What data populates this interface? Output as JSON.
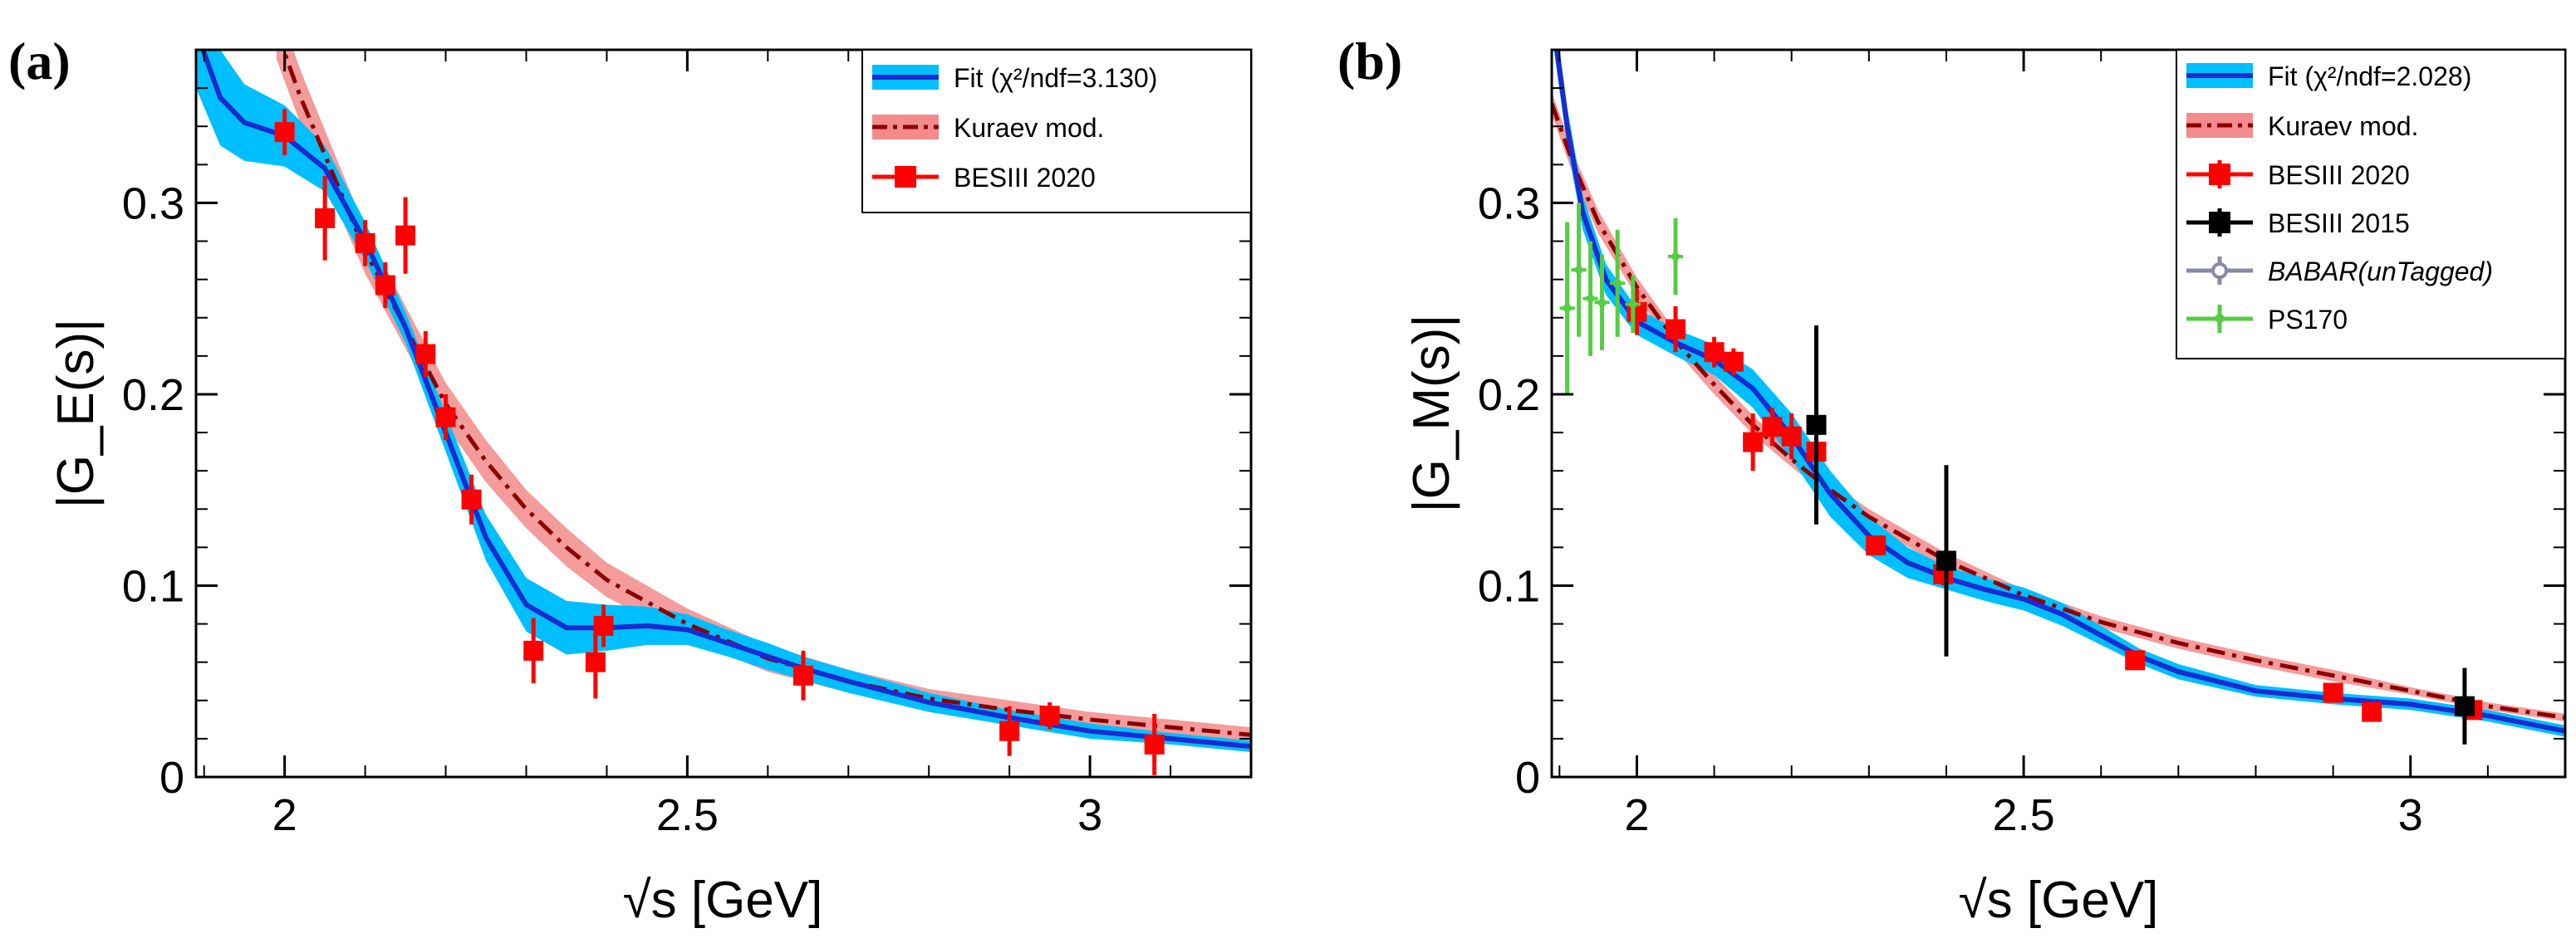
{
  "chart_data": [
    {
      "type": "scatter",
      "panel_label": "(a)",
      "xlabel": "√s [GeV]",
      "ylabel": "|G_E(s)|",
      "xlim": [
        1.89,
        3.2
      ],
      "ylim": [
        0,
        0.38
      ],
      "xticks": [
        2,
        2.5,
        3
      ],
      "xtick_labels": [
        "2",
        "2.5",
        "3"
      ],
      "yticks": [
        0,
        0.1,
        0.2,
        0.3
      ],
      "ytick_labels": [
        "0",
        "0.1",
        "0.2",
        "0.3"
      ],
      "legend_position": "top-right",
      "legend": [
        {
          "label": "Fit (χ²/ndf=3.130)",
          "kind": "band-line",
          "band_color": "#00bfff",
          "line_color": "#1c2bd1"
        },
        {
          "label": "Kuraev mod.",
          "kind": "band-dashdot",
          "band_color": "#f28b8b",
          "line_color": "#8b0000"
        },
        {
          "label": "BESIII 2020",
          "kind": "marker",
          "color": "#ff0000",
          "marker": "square"
        }
      ],
      "fit": {
        "x": [
          1.89,
          1.92,
          1.95,
          2.0,
          2.05,
          2.1,
          2.15,
          2.2,
          2.25,
          2.3,
          2.35,
          2.4,
          2.45,
          2.5,
          2.55,
          2.6,
          2.65,
          2.7,
          2.8,
          2.9,
          3.0,
          3.1,
          3.2
        ],
        "y": [
          0.39,
          0.355,
          0.342,
          0.335,
          0.318,
          0.28,
          0.235,
          0.18,
          0.125,
          0.09,
          0.078,
          0.078,
          0.079,
          0.077,
          0.07,
          0.063,
          0.056,
          0.05,
          0.039,
          0.031,
          0.024,
          0.02,
          0.016
        ],
        "band_halfwidth": [
          0.03,
          0.025,
          0.02,
          0.016,
          0.012,
          0.01,
          0.008,
          0.01,
          0.012,
          0.014,
          0.014,
          0.012,
          0.01,
          0.008,
          0.007,
          0.007,
          0.006,
          0.006,
          0.005,
          0.004,
          0.004,
          0.003,
          0.003
        ],
        "color": "#1c2bd1",
        "band_color": "#00bfff"
      },
      "kuraev": {
        "x": [
          1.99,
          2.02,
          2.05,
          2.1,
          2.15,
          2.2,
          2.25,
          2.3,
          2.35,
          2.4,
          2.5,
          2.6,
          2.7,
          2.8,
          2.9,
          3.0,
          3.1,
          3.2
        ],
        "y": [
          0.39,
          0.355,
          0.325,
          0.275,
          0.235,
          0.195,
          0.165,
          0.14,
          0.12,
          0.103,
          0.08,
          0.062,
          0.05,
          0.041,
          0.035,
          0.03,
          0.026,
          0.022
        ],
        "band_halfwidth": [
          0.015,
          0.014,
          0.013,
          0.012,
          0.011,
          0.011,
          0.011,
          0.01,
          0.01,
          0.009,
          0.008,
          0.007,
          0.006,
          0.005,
          0.005,
          0.004,
          0.004,
          0.004
        ],
        "color": "#8b0000",
        "band_color": "#f28b8b"
      },
      "series": [
        {
          "name": "BESIII 2020",
          "color": "#ff0000",
          "points": [
            {
              "x": 2.0,
              "y": 0.337,
              "yerr": 0.012
            },
            {
              "x": 2.05,
              "y": 0.292,
              "yerr": 0.022
            },
            {
              "x": 2.1,
              "y": 0.279,
              "yerr": 0.012
            },
            {
              "x": 2.125,
              "y": 0.257,
              "yerr": 0.012
            },
            {
              "x": 2.15,
              "y": 0.283,
              "yerr": 0.02
            },
            {
              "x": 2.175,
              "y": 0.221,
              "yerr": 0.012
            },
            {
              "x": 2.2,
              "y": 0.188,
              "yerr": 0.012
            },
            {
              "x": 2.232,
              "y": 0.145,
              "yerr": 0.013
            },
            {
              "x": 2.309,
              "y": 0.066,
              "yerr": 0.017
            },
            {
              "x": 2.386,
              "y": 0.06,
              "yerr": 0.019
            },
            {
              "x": 2.396,
              "y": 0.079,
              "yerr": 0.011
            },
            {
              "x": 2.644,
              "y": 0.053,
              "yerr": 0.013
            },
            {
              "x": 2.9,
              "y": 0.024,
              "yerr": 0.013
            },
            {
              "x": 2.95,
              "y": 0.032,
              "yerr": 0.007
            },
            {
              "x": 3.08,
              "y": 0.017,
              "yerr": 0.016
            }
          ]
        }
      ]
    },
    {
      "type": "scatter",
      "panel_label": "(b)",
      "xlabel": "√s [GeV]",
      "ylabel": "|G_M(s)|",
      "xlim": [
        1.89,
        3.2
      ],
      "ylim": [
        0,
        0.38
      ],
      "xticks": [
        2,
        2.5,
        3
      ],
      "xtick_labels": [
        "2",
        "2.5",
        "3"
      ],
      "yticks": [
        0,
        0.1,
        0.2,
        0.3
      ],
      "ytick_labels": [
        "0",
        "0.1",
        "0.2",
        "0.3"
      ],
      "legend_position": "top-right",
      "legend": [
        {
          "label": "Fit (χ²/ndf=2.028)",
          "kind": "band-line",
          "band_color": "#00bfff",
          "line_color": "#1c2bd1"
        },
        {
          "label": "Kuraev mod.",
          "kind": "band-dashdot",
          "band_color": "#f28b8b",
          "line_color": "#8b0000"
        },
        {
          "label": "BESIII 2020",
          "kind": "marker",
          "color": "#ff0000",
          "marker": "square"
        },
        {
          "label": "BESIII 2015",
          "kind": "marker",
          "color": "#000000",
          "marker": "square"
        },
        {
          "label": "BABAR(unTagged)",
          "kind": "marker",
          "color": "#8888a8",
          "marker": "open-circle"
        },
        {
          "label": "PS170",
          "kind": "marker",
          "color": "#55cc44",
          "marker": "star"
        }
      ],
      "fit": {
        "x": [
          1.89,
          1.91,
          1.93,
          1.96,
          2.0,
          2.05,
          2.1,
          2.15,
          2.2,
          2.25,
          2.3,
          2.35,
          2.4,
          2.45,
          2.5,
          2.55,
          2.6,
          2.65,
          2.7,
          2.8,
          2.9,
          3.0,
          3.1,
          3.2
        ],
        "y": [
          0.4,
          0.34,
          0.295,
          0.26,
          0.238,
          0.227,
          0.218,
          0.203,
          0.178,
          0.148,
          0.126,
          0.112,
          0.104,
          0.098,
          0.093,
          0.085,
          0.074,
          0.063,
          0.055,
          0.045,
          0.041,
          0.038,
          0.032,
          0.024
        ],
        "band_halfwidth": [
          0.012,
          0.01,
          0.009,
          0.008,
          0.007,
          0.007,
          0.008,
          0.01,
          0.012,
          0.012,
          0.01,
          0.008,
          0.006,
          0.006,
          0.006,
          0.006,
          0.005,
          0.004,
          0.004,
          0.003,
          0.003,
          0.003,
          0.003,
          0.003
        ],
        "color": "#1c2bd1",
        "band_color": "#00bfff"
      },
      "kuraev": {
        "x": [
          1.89,
          1.92,
          1.95,
          2.0,
          2.05,
          2.1,
          2.15,
          2.2,
          2.25,
          2.3,
          2.4,
          2.5,
          2.6,
          2.7,
          2.8,
          2.9,
          3.0,
          3.1,
          3.2
        ],
        "y": [
          0.352,
          0.318,
          0.29,
          0.256,
          0.228,
          0.205,
          0.184,
          0.166,
          0.15,
          0.136,
          0.113,
          0.095,
          0.081,
          0.07,
          0.061,
          0.053,
          0.045,
          0.037,
          0.031
        ],
        "band_halfwidth": [
          0.006,
          0.006,
          0.006,
          0.005,
          0.005,
          0.005,
          0.005,
          0.004,
          0.004,
          0.004,
          0.004,
          0.003,
          0.003,
          0.003,
          0.003,
          0.003,
          0.002,
          0.002,
          0.002
        ],
        "color": "#8b0000",
        "band_color": "#f28b8b"
      },
      "series": [
        {
          "name": "BESIII 2020",
          "color": "#ff0000",
          "points": [
            {
              "x": 2.0,
              "y": 0.243,
              "yerr": 0.012
            },
            {
              "x": 2.05,
              "y": 0.234,
              "yerr": 0.012
            },
            {
              "x": 2.1,
              "y": 0.222,
              "yerr": 0.008
            },
            {
              "x": 2.125,
              "y": 0.217,
              "yerr": 0.007
            },
            {
              "x": 2.15,
              "y": 0.175,
              "yerr": 0.015
            },
            {
              "x": 2.175,
              "y": 0.183,
              "yerr": 0.01
            },
            {
              "x": 2.2,
              "y": 0.178,
              "yerr": 0.012
            },
            {
              "x": 2.232,
              "y": 0.17,
              "yerr": 0.012
            },
            {
              "x": 2.309,
              "y": 0.121,
              "yerr": 0.005
            },
            {
              "x": 2.396,
              "y": 0.106,
              "yerr": 0.006
            },
            {
              "x": 2.644,
              "y": 0.061,
              "yerr": 0.004
            },
            {
              "x": 2.9,
              "y": 0.044,
              "yerr": 0.005
            },
            {
              "x": 2.95,
              "y": 0.034,
              "yerr": 0.004
            },
            {
              "x": 3.08,
              "y": 0.035,
              "yerr": 0.004
            }
          ]
        },
        {
          "name": "BESIII 2015",
          "color": "#000000",
          "points": [
            {
              "x": 2.232,
              "y": 0.184,
              "yerr": 0.052
            },
            {
              "x": 2.4,
              "y": 0.113,
              "yerr": 0.05
            },
            {
              "x": 3.07,
              "y": 0.037,
              "yerr": 0.02
            }
          ]
        },
        {
          "name": "PS170",
          "color": "#55cc44",
          "points": [
            {
              "x": 1.91,
              "y": 0.245,
              "yerr": 0.045
            },
            {
              "x": 1.925,
              "y": 0.265,
              "yerr": 0.035
            },
            {
              "x": 1.94,
              "y": 0.25,
              "yerr": 0.03
            },
            {
              "x": 1.955,
              "y": 0.248,
              "yerr": 0.025
            },
            {
              "x": 1.975,
              "y": 0.258,
              "yerr": 0.028
            },
            {
              "x": 1.995,
              "y": 0.247,
              "yerr": 0.015
            },
            {
              "x": 2.05,
              "y": 0.272,
              "yerr": 0.02
            }
          ]
        }
      ]
    }
  ]
}
